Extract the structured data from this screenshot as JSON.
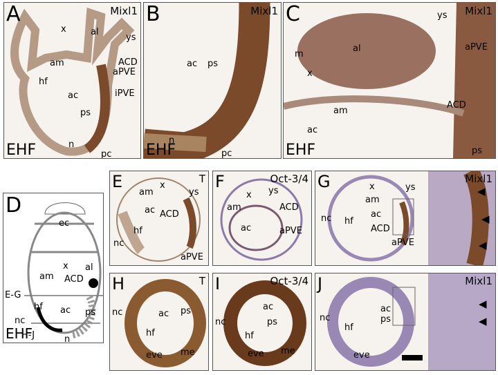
{
  "panels": {
    "A": {
      "letter": "A",
      "marker": "Mixl1",
      "stage": "EHF",
      "labels": {
        "x": "x",
        "al": "al",
        "ys": "ys",
        "am": "am",
        "acd": "ACD",
        "apve": "aPVE",
        "hf": "hf",
        "ac": "ac",
        "ipve": "iPVE",
        "ps": "ps",
        "n": "n",
        "pc": "pc"
      }
    },
    "B": {
      "letter": "B",
      "marker": "Mixl1",
      "stage": "EHF",
      "labels": {
        "ac": "ac",
        "ps": "ps",
        "n": "n",
        "pc": "pc"
      }
    },
    "C": {
      "letter": "C",
      "marker": "Mixl1",
      "stage": "EHF",
      "labels": {
        "ys": "ys",
        "al": "al",
        "m": "m",
        "x": "x",
        "apve": "aPVE",
        "am": "am",
        "ac": "ac",
        "acd": "ACD",
        "ps": "ps"
      }
    },
    "D": {
      "letter": "D",
      "stage": "EHF",
      "labels": {
        "ec": "ec",
        "x": "x",
        "al": "al",
        "am": "am",
        "acd": "ACD",
        "eg": "E-G",
        "hf": "hf",
        "ac": "ac",
        "ps": "ps",
        "nc": "nc",
        "hj": "H-J",
        "n": "n"
      }
    },
    "E": {
      "letter": "E",
      "marker": "T",
      "labels": {
        "x": "x",
        "am": "am",
        "ys": "ys",
        "ac": "ac",
        "acd": "ACD",
        "hf": "hf",
        "nc": "nc",
        "apve": "aPVE"
      }
    },
    "F": {
      "letter": "F",
      "marker": "Oct-3/4",
      "labels": {
        "x": "x",
        "ys": "ys",
        "am": "am",
        "acd": "ACD",
        "ac": "ac",
        "apve": "aPVE"
      }
    },
    "G": {
      "letter": "G",
      "marker": "Mixl1",
      "labels": {
        "x": "x",
        "ys": "ys",
        "am": "am",
        "ac": "ac",
        "nc": "nc",
        "hf": "hf",
        "acd": "ACD",
        "apve": "aPVE"
      }
    },
    "H": {
      "letter": "H",
      "marker": "T",
      "labels": {
        "nc": "nc",
        "ac": "ac",
        "ps": "ps",
        "hf": "hf",
        "eve": "eve",
        "me": "me"
      }
    },
    "I": {
      "letter": "I",
      "marker": "Oct-3/4",
      "labels": {
        "ac": "ac",
        "ps": "ps",
        "nc": "nc",
        "hf": "hf",
        "eve": "eve",
        "me": "me"
      }
    },
    "J": {
      "letter": "J",
      "marker": "Mixl1",
      "labels": {
        "ac": "ac",
        "ps": "ps",
        "nc": "nc",
        "hf": "hf",
        "eve": "eve"
      }
    }
  },
  "colors": {
    "stain_brown": "#7a4a2a",
    "counterstain": "#b9a9c4",
    "background": "#f6f3ef"
  }
}
